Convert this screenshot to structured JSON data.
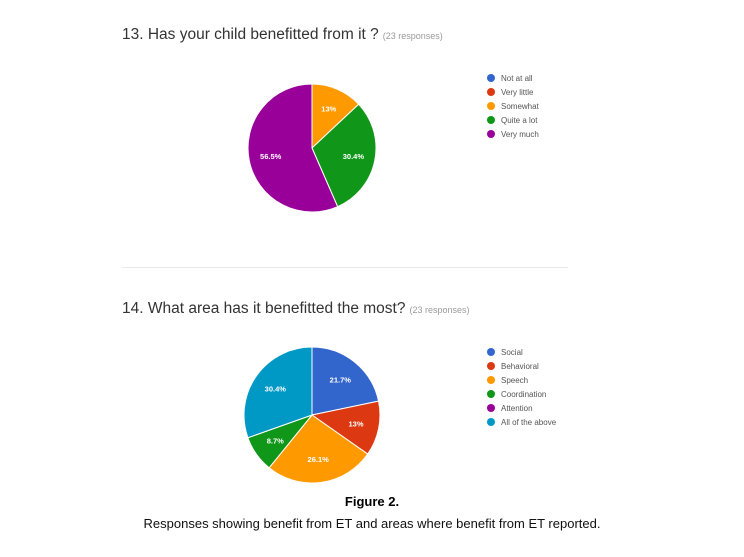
{
  "chart_data": [
    {
      "type": "pie",
      "title": "13. Has your child benefitted from it ?",
      "responses": "(23 responses)",
      "legend_position": "right",
      "slices": [
        {
          "label": "Not at all",
          "value": 0,
          "display": "",
          "color": "#3366cc"
        },
        {
          "label": "Very little",
          "value": 0,
          "display": "",
          "color": "#dc3912"
        },
        {
          "label": "Somewhat",
          "value": 13,
          "display": "13%",
          "color": "#ff9900"
        },
        {
          "label": "Quite a lot",
          "value": 30.4,
          "display": "30.4%",
          "color": "#109618"
        },
        {
          "label": "Very much",
          "value": 56.5,
          "display": "56.5%",
          "color": "#990099"
        }
      ]
    },
    {
      "type": "pie",
      "title": "14. What area has it benefitted the most?",
      "responses": "(23 responses)",
      "legend_position": "right",
      "slices": [
        {
          "label": "Social",
          "value": 21.7,
          "display": "21.7%",
          "color": "#3366cc"
        },
        {
          "label": "Behavioral",
          "value": 13,
          "display": "13%",
          "color": "#dc3912"
        },
        {
          "label": "Speech",
          "value": 26.1,
          "display": "26.1%",
          "color": "#ff9900"
        },
        {
          "label": "Coordination",
          "value": 8.7,
          "display": "8.7%",
          "color": "#109618"
        },
        {
          "label": "Attention",
          "value": 0,
          "display": "",
          "color": "#990099"
        },
        {
          "label": "All of the above",
          "value": 30.4,
          "display": "30.4%",
          "color": "#0099c6"
        }
      ]
    }
  ],
  "caption": {
    "title": "Figure 2.",
    "text": "Responses showing benefit from ET and areas where benefit from ET reported."
  }
}
